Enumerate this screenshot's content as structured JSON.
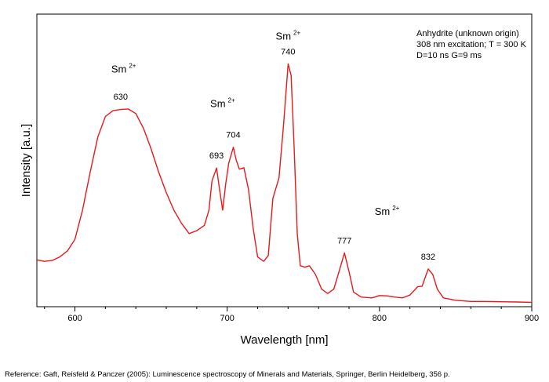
{
  "chart_data": {
    "type": "line",
    "xlabel": "Wavelength [nm]",
    "ylabel": "Intensity [a.u.]",
    "xlim": [
      575,
      900
    ],
    "ylim": [
      0,
      1
    ],
    "x_ticks": [
      600,
      700,
      800,
      900
    ],
    "y_ticks_labeled": false,
    "grid": false,
    "legend": "none",
    "line_color": "#e8191c",
    "series": [
      {
        "points": [
          [
            575,
            0.16
          ],
          [
            580,
            0.155
          ],
          [
            585,
            0.158
          ],
          [
            590,
            0.17
          ],
          [
            595,
            0.19
          ],
          [
            600,
            0.23
          ],
          [
            605,
            0.33
          ],
          [
            610,
            0.46
          ],
          [
            615,
            0.58
          ],
          [
            620,
            0.65
          ],
          [
            625,
            0.67
          ],
          [
            630,
            0.674
          ],
          [
            635,
            0.676
          ],
          [
            640,
            0.66
          ],
          [
            645,
            0.61
          ],
          [
            650,
            0.54
          ],
          [
            655,
            0.46
          ],
          [
            660,
            0.39
          ],
          [
            665,
            0.33
          ],
          [
            670,
            0.285
          ],
          [
            675,
            0.25
          ],
          [
            680,
            0.26
          ],
          [
            685,
            0.278
          ],
          [
            688,
            0.33
          ],
          [
            690,
            0.43
          ],
          [
            693,
            0.474
          ],
          [
            695,
            0.4
          ],
          [
            697,
            0.33
          ],
          [
            699,
            0.42
          ],
          [
            701,
            0.49
          ],
          [
            704,
            0.545
          ],
          [
            706,
            0.5
          ],
          [
            708,
            0.47
          ],
          [
            711,
            0.475
          ],
          [
            714,
            0.4
          ],
          [
            717,
            0.27
          ],
          [
            720,
            0.17
          ],
          [
            724,
            0.155
          ],
          [
            727,
            0.175
          ],
          [
            730,
            0.37
          ],
          [
            734,
            0.44
          ],
          [
            737,
            0.62
          ],
          [
            740,
            0.83
          ],
          [
            742,
            0.79
          ],
          [
            744,
            0.54
          ],
          [
            746,
            0.25
          ],
          [
            748,
            0.14
          ],
          [
            751,
            0.135
          ],
          [
            754,
            0.14
          ],
          [
            758,
            0.11
          ],
          [
            762,
            0.06
          ],
          [
            766,
            0.045
          ],
          [
            770,
            0.06
          ],
          [
            774,
            0.13
          ],
          [
            777,
            0.184
          ],
          [
            780,
            0.12
          ],
          [
            783,
            0.05
          ],
          [
            788,
            0.033
          ],
          [
            795,
            0.03
          ],
          [
            800,
            0.038
          ],
          [
            805,
            0.037
          ],
          [
            810,
            0.033
          ],
          [
            815,
            0.03
          ],
          [
            820,
            0.04
          ],
          [
            825,
            0.068
          ],
          [
            828,
            0.07
          ],
          [
            832,
            0.129
          ],
          [
            835,
            0.11
          ],
          [
            838,
            0.06
          ],
          [
            842,
            0.03
          ],
          [
            850,
            0.022
          ],
          [
            860,
            0.018
          ],
          [
            870,
            0.018
          ],
          [
            880,
            0.017
          ],
          [
            890,
            0.016
          ],
          [
            900,
            0.015
          ]
        ]
      }
    ],
    "peak_labels": [
      {
        "x": 630,
        "y": 0.676,
        "text": "630"
      },
      {
        "x": 693,
        "y": 0.474,
        "text": "693"
      },
      {
        "x": 704,
        "y": 0.545,
        "text": "704"
      },
      {
        "x": 740,
        "y": 0.83,
        "text": "740"
      },
      {
        "x": 777,
        "y": 0.184,
        "text": "777"
      },
      {
        "x": 832,
        "y": 0.129,
        "text": "832"
      }
    ],
    "ion_labels": [
      {
        "x": 632,
        "y": 0.8,
        "base": "Sm",
        "sup": "2+"
      },
      {
        "x": 697,
        "y": 0.682,
        "base": "Sm",
        "sup": "2+"
      },
      {
        "x": 740,
        "y": 0.913,
        "base": "Sm",
        "sup": "2+"
      },
      {
        "x": 805,
        "y": 0.314,
        "base": "Sm",
        "sup": "2+"
      }
    ],
    "info_lines": [
      "Anhydrite (unknown origin)",
      "308 nm excitation; T = 300 K",
      "D=10 ns G=9 ms"
    ]
  },
  "reference": "Reference: Gaft, Reisfeld & Panczer (2005): Luminescence spectroscopy of Minerals and Materials, Springer, Berlin Heidelberg, 356 p."
}
